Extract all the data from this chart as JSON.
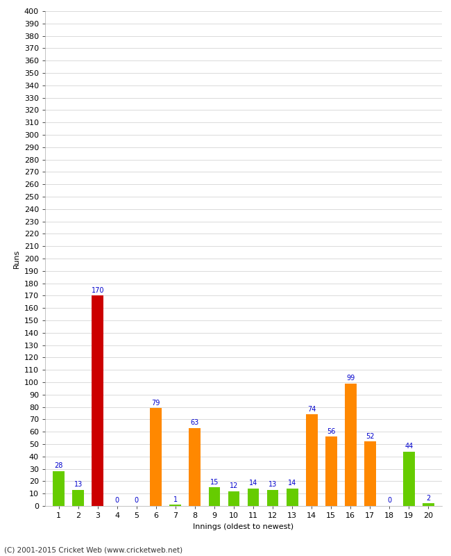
{
  "xlabel": "Innings (oldest to newest)",
  "ylabel": "Runs",
  "innings": [
    1,
    2,
    3,
    4,
    5,
    6,
    7,
    8,
    9,
    10,
    11,
    12,
    13,
    14,
    15,
    16,
    17,
    18,
    19,
    20
  ],
  "values": [
    28,
    13,
    170,
    0,
    0,
    79,
    1,
    63,
    15,
    12,
    14,
    13,
    14,
    74,
    56,
    99,
    52,
    0,
    44,
    2
  ],
  "colors": [
    "#66cc00",
    "#66cc00",
    "#cc0000",
    "#66cc00",
    "#66cc00",
    "#ff8800",
    "#66cc00",
    "#ff8800",
    "#66cc00",
    "#66cc00",
    "#66cc00",
    "#66cc00",
    "#66cc00",
    "#ff8800",
    "#ff8800",
    "#ff8800",
    "#ff8800",
    "#66cc00",
    "#66cc00",
    "#66cc00"
  ],
  "ylim": [
    0,
    400
  ],
  "background_color": "#ffffff",
  "grid_color": "#cccccc",
  "label_color": "#0000cc",
  "footer": "(C) 2001-2015 Cricket Web (www.cricketweb.net)",
  "bar_width": 0.6,
  "label_fontsize": 7,
  "axis_fontsize": 8,
  "ylabel_fontsize": 8,
  "xlabel_fontsize": 8,
  "footer_fontsize": 7.5
}
